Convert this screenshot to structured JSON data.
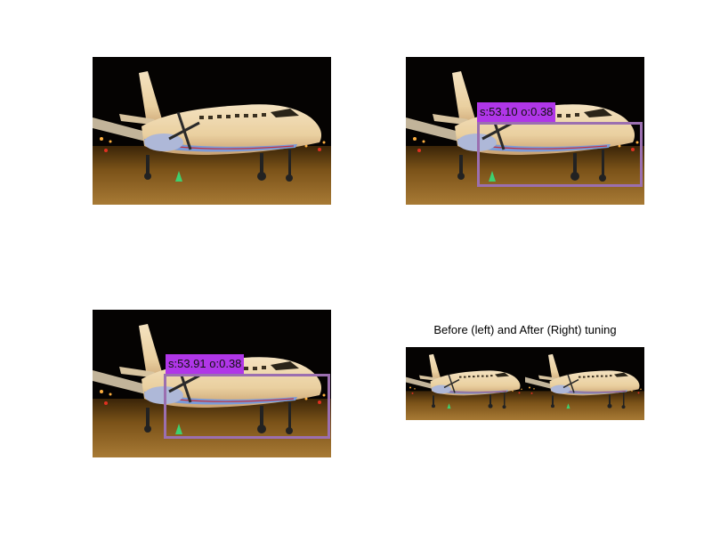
{
  "figure": {
    "panels": [
      {
        "id": "original",
        "detection": null
      },
      {
        "id": "before",
        "detection": {
          "label": "s:53.10 o:0.38"
        }
      },
      {
        "id": "after",
        "detection": {
          "label": "s:53.91 o:0.38"
        }
      },
      {
        "id": "comparison",
        "title": "Before (left) and After (Right) tuning"
      }
    ],
    "colors": {
      "box": "#9b6fb0",
      "label_bg": "#b036e8"
    }
  }
}
